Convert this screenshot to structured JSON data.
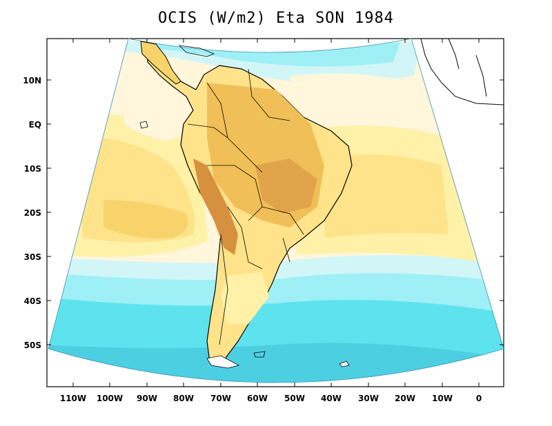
{
  "title": "OCIS (W/m2) Eta SON 1984",
  "map": {
    "lat_labels": [
      "10N",
      "EQ",
      "10S",
      "20S",
      "30S",
      "40S",
      "50S"
    ],
    "lon_labels": [
      "110W",
      "100W",
      "90W",
      "80W",
      "70W",
      "60W",
      "50W",
      "40W",
      "30W",
      "20W",
      "10W",
      "0"
    ],
    "colors": {
      "ocean_far_south": "#4dcfe2",
      "ocean_south": "#5ee3ee",
      "ocean_cold": "#9ef0f6",
      "ocean_cool": "#d2f6f8",
      "pale_cream": "#fff6dc",
      "light_yellow": "#fff1a8",
      "yellow": "#ffe38a",
      "light_orange": "#f8d36c",
      "orange": "#f0bf58",
      "dark_orange": "#e2a44a",
      "deep_orange": "#d6903e",
      "border": "#000000"
    }
  }
}
